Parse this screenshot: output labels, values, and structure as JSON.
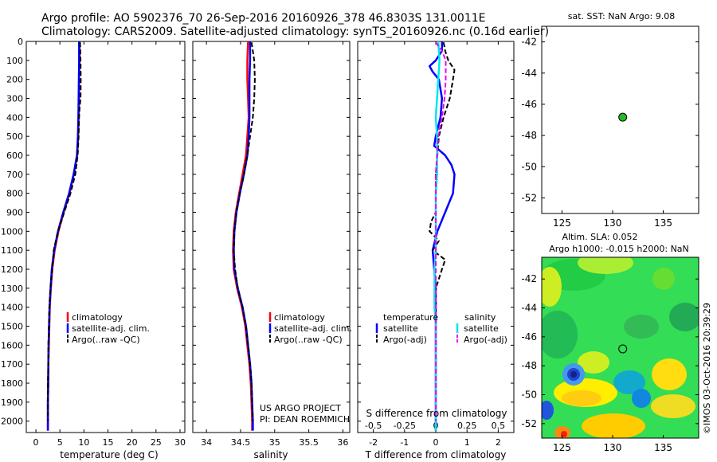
{
  "header": {
    "line1": "Argo profile: AO 5902376_70 26-Sep-2016 20160926_378 46.8303S 131.0011E",
    "line2": "Climatology: CARS2009. Satellite-adjusted climatology: synTS_20160926.nc (0.16d earlier)"
  },
  "colors": {
    "climatology": "#ff0000",
    "satellite": "#0000ff",
    "argo": "#000000",
    "s_satellite": "#00e5ee",
    "s_argo": "#ee00ee",
    "marker": "#22bb22"
  },
  "footer": {
    "project": "US ARGO PROJECT",
    "pi": "PI: DEAN ROEMMICH",
    "stamp": "©IMOS 03-Oct-2016 20:39:29"
  },
  "chart_data": [
    {
      "id": "temperature",
      "type": "line",
      "xlabel": "temperature (deg C)",
      "ylabel": "depth",
      "xlim": [
        -2,
        31
      ],
      "ylim": [
        2060,
        0
      ],
      "xticks": [
        "0",
        "5",
        "10",
        "15",
        "20",
        "25",
        "30"
      ],
      "yticks": [
        "0",
        "100",
        "200",
        "300",
        "400",
        "500",
        "600",
        "700",
        "800",
        "900",
        "1000",
        "1100",
        "1200",
        "1300",
        "1400",
        "1500",
        "1600",
        "1700",
        "1800",
        "1900",
        "2000"
      ],
      "legend": [
        "climatology",
        "satellite-adj. clim.",
        "Argo(..raw -QC)"
      ],
      "legend_position": "lower-center",
      "series": [
        {
          "name": "climatology",
          "depth": [
            0,
            100,
            200,
            300,
            400,
            500,
            600,
            700,
            800,
            900,
            1000,
            1100,
            1200,
            1300,
            1400,
            1500,
            1600,
            1700,
            1800,
            1900,
            2000,
            2050
          ],
          "values": [
            9.1,
            9.1,
            9.0,
            9.0,
            8.9,
            8.8,
            8.6,
            7.9,
            7.0,
            5.8,
            4.7,
            3.9,
            3.4,
            3.1,
            2.9,
            2.8,
            2.7,
            2.6,
            2.6,
            2.5,
            2.5,
            2.5
          ]
        },
        {
          "name": "satellite-adj. clim.",
          "depth": [
            0,
            100,
            200,
            300,
            400,
            500,
            600,
            700,
            800,
            900,
            1000,
            1100,
            1200,
            1300,
            1400,
            1500,
            1600,
            1700,
            1800,
            1900,
            2000,
            2050
          ],
          "values": [
            9.0,
            9.0,
            8.95,
            8.9,
            8.85,
            8.75,
            8.55,
            7.85,
            6.9,
            5.7,
            4.6,
            3.8,
            3.3,
            3.05,
            2.85,
            2.75,
            2.65,
            2.6,
            2.55,
            2.5,
            2.5,
            2.5
          ]
        },
        {
          "name": "Argo(..raw -QC)",
          "depth": [
            5,
            100,
            200,
            300,
            350,
            400,
            500,
            600,
            700,
            800,
            900,
            1000,
            1100,
            1200,
            1300,
            1400,
            1500,
            1600,
            1700,
            1800,
            1900,
            2000
          ],
          "values": [
            9.2,
            9.3,
            9.35,
            9.3,
            9.1,
            9.0,
            8.9,
            8.7,
            8.2,
            7.2,
            5.9,
            4.6,
            3.7,
            3.4,
            3.0,
            2.8,
            2.7,
            2.6,
            2.6,
            2.5,
            2.5,
            2.5
          ]
        }
      ]
    },
    {
      "id": "salinity",
      "type": "line",
      "xlabel": "salinity",
      "ylabel": "depth",
      "xlim": [
        33.8,
        36.1
      ],
      "ylim": [
        2060,
        0
      ],
      "xticks": [
        "34",
        "34.5",
        "35",
        "35.5",
        "36"
      ],
      "legend": [
        "climatology",
        "satellite-adj. clim.",
        "Argo(..raw -QC)"
      ],
      "legend_position": "lower-right",
      "series": [
        {
          "name": "climatology",
          "depth": [
            0,
            100,
            200,
            300,
            400,
            500,
            600,
            700,
            800,
            900,
            1000,
            1100,
            1200,
            1300,
            1400,
            1500,
            1600,
            1700,
            1800,
            1900,
            2000,
            2050
          ],
          "values": [
            34.61,
            34.6,
            34.6,
            34.61,
            34.62,
            34.6,
            34.58,
            34.53,
            34.48,
            34.43,
            34.4,
            34.39,
            34.4,
            34.45,
            34.52,
            34.57,
            34.6,
            34.63,
            34.65,
            34.66,
            34.67,
            34.67
          ]
        },
        {
          "name": "satellite-adj. clim.",
          "depth": [
            0,
            100,
            200,
            300,
            400,
            500,
            600,
            700,
            800,
            900,
            1000,
            1100,
            1200,
            1300,
            1400,
            1500,
            1600,
            1700,
            1800,
            1900,
            2000,
            2050
          ],
          "values": [
            34.64,
            34.64,
            34.63,
            34.63,
            34.63,
            34.62,
            34.6,
            34.55,
            34.49,
            34.44,
            34.41,
            34.4,
            34.41,
            34.46,
            34.53,
            34.58,
            34.61,
            34.64,
            34.66,
            34.67,
            34.68,
            34.68
          ]
        },
        {
          "name": "Argo(..raw -QC)",
          "depth": [
            5,
            100,
            200,
            300,
            400,
            500,
            600,
            700,
            800,
            900,
            1000,
            1100,
            1200,
            1300,
            1400,
            1500,
            1600,
            1700,
            1800,
            1900,
            2000
          ],
          "values": [
            34.66,
            34.7,
            34.71,
            34.7,
            34.68,
            34.64,
            34.6,
            34.55,
            34.49,
            34.44,
            34.41,
            34.4,
            34.42,
            34.46,
            34.53,
            34.58,
            34.61,
            34.64,
            34.66,
            34.67,
            34.68
          ]
        }
      ]
    },
    {
      "id": "difference",
      "type": "line",
      "xlabel": "T difference from climatology",
      "xlabel_top": "S difference from climatology",
      "ylabel": "depth",
      "xlim": [
        -2.5,
        2.5
      ],
      "ylim": [
        2060,
        0
      ],
      "xticks": [
        "-2",
        "-1",
        "0",
        "1",
        "2"
      ],
      "xticks_top": [
        "-0.5",
        "-0.25",
        "0",
        "0.25",
        "0.5"
      ],
      "legend_titles": [
        "temperature",
        "salinity"
      ],
      "legend": [
        "satellite",
        "Argo(-adj)",
        "satellite",
        "Argo(-adj)"
      ],
      "legend_position": "lower-center",
      "series": [
        {
          "name": "temperature satellite",
          "depth": [
            0,
            50,
            100,
            130,
            160,
            200,
            300,
            400,
            500,
            550,
            600,
            650,
            700,
            800,
            900,
            1000,
            1100,
            1200,
            1300,
            1400,
            1500,
            1600,
            1700,
            1800,
            1900,
            2000,
            2050
          ],
          "values": [
            0.2,
            0.2,
            0.0,
            -0.2,
            -0.1,
            0.1,
            0.2,
            0.15,
            0.0,
            -0.05,
            0.3,
            0.5,
            0.6,
            0.55,
            0.3,
            0.05,
            -0.1,
            -0.05,
            0.0,
            0.0,
            0.0,
            0.0,
            0.0,
            0.0,
            0.0,
            0.0,
            0.0
          ]
        },
        {
          "name": "temperature Argo(-adj)",
          "depth": [
            5,
            50,
            100,
            150,
            200,
            250,
            300,
            350,
            400,
            500,
            600,
            700,
            800,
            900,
            950,
            1000,
            1050,
            1100,
            1150,
            1200,
            1300,
            1400,
            1500,
            1600,
            1700,
            1800,
            1900,
            2000
          ],
          "values": [
            0.25,
            0.3,
            0.4,
            0.6,
            0.55,
            0.5,
            0.45,
            0.35,
            0.25,
            0.1,
            0.05,
            0.0,
            0.0,
            0.0,
            -0.15,
            -0.2,
            0.1,
            -0.1,
            0.3,
            0.2,
            0.0,
            0.0,
            0.0,
            0.0,
            0.0,
            0.0,
            0.0,
            0.0
          ]
        },
        {
          "name": "salinity satellite",
          "depth": [
            0,
            100,
            200,
            300,
            400,
            500,
            600,
            700,
            800,
            900,
            1000,
            1100,
            1200,
            1300,
            1400,
            1500,
            1600,
            1700,
            1800,
            1900,
            2000,
            2050
          ],
          "values": [
            0.02,
            0.03,
            0.02,
            0.01,
            0.0,
            0.01,
            0.01,
            0.01,
            0.0,
            0.0,
            0.0,
            0.0,
            -0.01,
            -0.01,
            -0.01,
            0.0,
            0.0,
            0.0,
            0.0,
            0.0,
            0.0,
            0.0
          ]
        },
        {
          "name": "salinity Argo(-adj)",
          "depth": [
            5,
            50,
            100,
            200,
            300,
            400,
            500,
            600,
            700,
            800,
            900,
            1000,
            1100,
            1200,
            1300,
            1400,
            1500,
            1600,
            1700,
            1800,
            1900,
            2000
          ],
          "values": [
            0.0,
            0.05,
            0.08,
            0.08,
            0.07,
            0.05,
            0.02,
            0.01,
            0.0,
            0.0,
            0.0,
            0.0,
            0.0,
            0.0,
            0.0,
            0.0,
            0.0,
            0.0,
            0.0,
            0.0,
            0.0,
            0.0
          ]
        }
      ]
    },
    {
      "id": "sst_map",
      "type": "scatter",
      "title": "sat. SST: NaN Argo: 9.08",
      "xlim": [
        123,
        138.5
      ],
      "ylim": [
        -53,
        -41
      ],
      "xticks": [
        "125",
        "130",
        "135"
      ],
      "yticks": [
        "-42",
        "-44",
        "-46",
        "-48",
        "-50",
        "-52"
      ],
      "points": [
        {
          "x": 131.0,
          "y": -46.83
        }
      ]
    },
    {
      "id": "sla_map",
      "type": "heatmap",
      "title": "Altim. SLA: 0.052",
      "subtitle": "Argo h1000: -0.015 h2000: NaN",
      "xlim": [
        123,
        138.5
      ],
      "ylim": [
        -53,
        -40.5
      ],
      "xticks": [
        "125",
        "130",
        "135"
      ],
      "yticks": [
        "-42",
        "-44",
        "-46",
        "-48",
        "-50",
        "-52"
      ],
      "points": [
        {
          "x": 131.0,
          "y": -46.83
        }
      ]
    }
  ]
}
